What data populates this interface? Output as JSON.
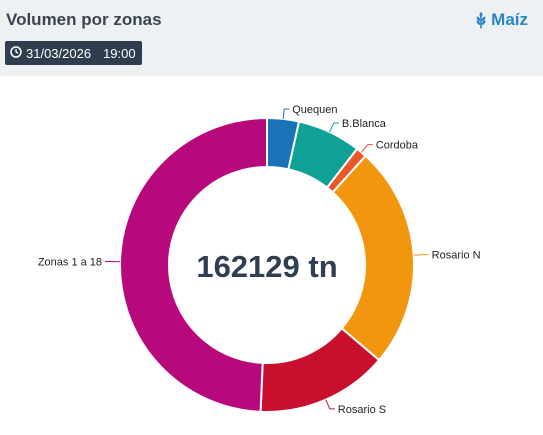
{
  "header": {
    "title": "Volumen por zonas",
    "crop_label": "Maíz",
    "crop_icon": "wheat-icon",
    "date": "31/03/2026",
    "time": "19:00",
    "clock_icon": "clock-icon"
  },
  "chart_data": {
    "type": "pie",
    "variant": "donut",
    "center_label": "162129 tn",
    "categories": [
      "Quequen",
      "B.Blanca",
      "Cordoba",
      "Rosario N",
      "Rosario S",
      "Zonas 1 a 18"
    ],
    "values": [
      3.5,
      7.0,
      1.2,
      24.5,
      14.5,
      49.3
    ],
    "colors": [
      "#1a73b8",
      "#0fa195",
      "#e8582a",
      "#f2960e",
      "#c8102e",
      "#b8097c"
    ],
    "legend": "none"
  }
}
